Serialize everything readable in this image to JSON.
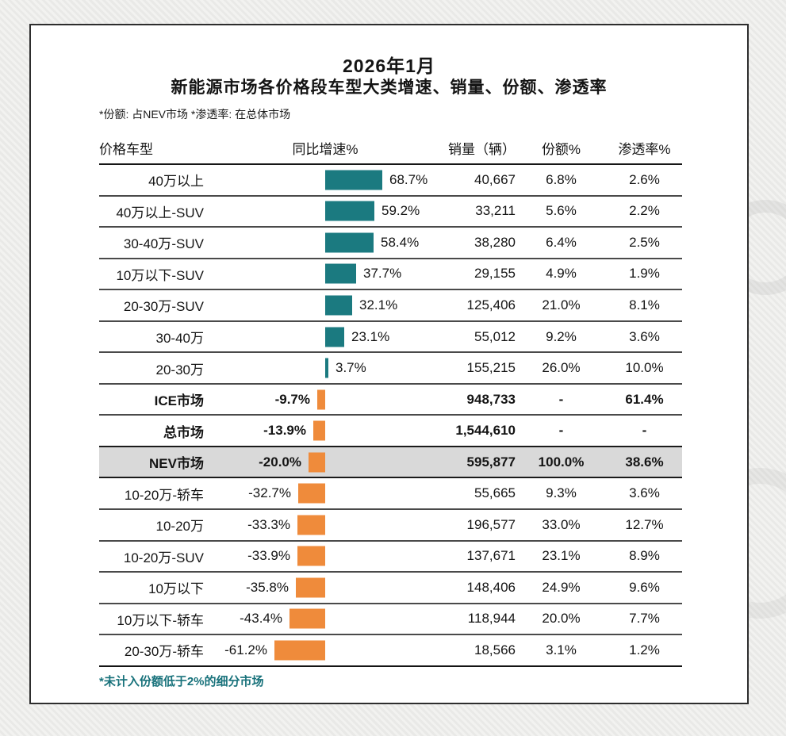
{
  "page": {
    "title_line1": "2026年1月",
    "title_line2": "新能源市场各价格段车型大类增速、销量、份额、渗透率",
    "note": "*份额: 占NEV市场  *渗透率: 在总体市场",
    "footnote": "*未计入份额低于2%的细分市场"
  },
  "colors": {
    "positive_bar": "#1b7a80",
    "negative_bar": "#ef8b3b",
    "highlight_row_bg": "#d9d9d9",
    "footnote_text": "#18727b"
  },
  "table": {
    "headers": {
      "category": "价格车型",
      "growth": "同比增速%",
      "sales": "销量（辆）",
      "share": "份额%",
      "penetration": "渗透率%"
    },
    "rows": [
      {
        "label": "40万以上",
        "growth_value": 68.7,
        "growth_label": "68.7%",
        "sales": "40,667",
        "share": "6.8%",
        "penetration": "2.6%",
        "emphasis": false,
        "highlight": false
      },
      {
        "label": "40万以上-SUV",
        "growth_value": 59.2,
        "growth_label": "59.2%",
        "sales": "33,211",
        "share": "5.6%",
        "penetration": "2.2%",
        "emphasis": false,
        "highlight": false
      },
      {
        "label": "30-40万-SUV",
        "growth_value": 58.4,
        "growth_label": "58.4%",
        "sales": "38,280",
        "share": "6.4%",
        "penetration": "2.5%",
        "emphasis": false,
        "highlight": false
      },
      {
        "label": "10万以下-SUV",
        "growth_value": 37.7,
        "growth_label": "37.7%",
        "sales": "29,155",
        "share": "4.9%",
        "penetration": "1.9%",
        "emphasis": false,
        "highlight": false
      },
      {
        "label": "20-30万-SUV",
        "growth_value": 32.1,
        "growth_label": "32.1%",
        "sales": "125,406",
        "share": "21.0%",
        "penetration": "8.1%",
        "emphasis": false,
        "highlight": false
      },
      {
        "label": "30-40万",
        "growth_value": 23.1,
        "growth_label": "23.1%",
        "sales": "55,012",
        "share": "9.2%",
        "penetration": "3.6%",
        "emphasis": false,
        "highlight": false
      },
      {
        "label": "20-30万",
        "growth_value": 3.7,
        "growth_label": "3.7%",
        "sales": "155,215",
        "share": "26.0%",
        "penetration": "10.0%",
        "emphasis": false,
        "highlight": false
      },
      {
        "label": "ICE市场",
        "growth_value": -9.7,
        "growth_label": "-9.7%",
        "sales": "948,733",
        "share": "-",
        "penetration": "61.4%",
        "emphasis": true,
        "highlight": false
      },
      {
        "label": "总市场",
        "growth_value": -13.9,
        "growth_label": "-13.9%",
        "sales": "1,544,610",
        "share": "-",
        "penetration": "-",
        "emphasis": true,
        "highlight": false
      },
      {
        "label": "NEV市场",
        "growth_value": -20.0,
        "growth_label": "-20.0%",
        "sales": "595,877",
        "share": "100.0%",
        "penetration": "38.6%",
        "emphasis": true,
        "highlight": true
      },
      {
        "label": "10-20万-轿车",
        "growth_value": -32.7,
        "growth_label": "-32.7%",
        "sales": "55,665",
        "share": "9.3%",
        "penetration": "3.6%",
        "emphasis": false,
        "highlight": false
      },
      {
        "label": "10-20万",
        "growth_value": -33.3,
        "growth_label": "-33.3%",
        "sales": "196,577",
        "share": "33.0%",
        "penetration": "12.7%",
        "emphasis": false,
        "highlight": false
      },
      {
        "label": "10-20万-SUV",
        "growth_value": -33.9,
        "growth_label": "-33.9%",
        "sales": "137,671",
        "share": "23.1%",
        "penetration": "8.9%",
        "emphasis": false,
        "highlight": false
      },
      {
        "label": "10万以下",
        "growth_value": -35.8,
        "growth_label": "-35.8%",
        "sales": "148,406",
        "share": "24.9%",
        "penetration": "9.6%",
        "emphasis": false,
        "highlight": false
      },
      {
        "label": "10万以下-轿车",
        "growth_value": -43.4,
        "growth_label": "-43.4%",
        "sales": "118,944",
        "share": "20.0%",
        "penetration": "7.7%",
        "emphasis": false,
        "highlight": false
      },
      {
        "label": "20-30万-轿车",
        "growth_value": -61.2,
        "growth_label": "-61.2%",
        "sales": "18,566",
        "share": "3.1%",
        "penetration": "1.2%",
        "emphasis": false,
        "highlight": false
      }
    ]
  },
  "chart_data": {
    "type": "bar",
    "orientation": "horizontal",
    "title": "2026年1月 新能源市场各价格段车型大类增速、销量、份额、渗透率",
    "categories": [
      "40万以上",
      "40万以上-SUV",
      "30-40万-SUV",
      "10万以下-SUV",
      "20-30万-SUV",
      "30-40万",
      "20-30万",
      "ICE市场",
      "总市场",
      "NEV市场",
      "10-20万-轿车",
      "10-20万",
      "10-20万-SUV",
      "10万以下",
      "10万以下-轿车",
      "20-30万-轿车"
    ],
    "series": [
      {
        "name": "同比增速%",
        "values": [
          68.7,
          59.2,
          58.4,
          37.7,
          32.1,
          23.1,
          3.7,
          -9.7,
          -13.9,
          -20.0,
          -32.7,
          -33.3,
          -33.9,
          -35.8,
          -43.4,
          -61.2
        ]
      },
      {
        "name": "销量（辆）",
        "values": [
          40667,
          33211,
          38280,
          29155,
          125406,
          55012,
          155215,
          948733,
          1544610,
          595877,
          55665,
          196577,
          137671,
          148406,
          118944,
          18566
        ]
      },
      {
        "name": "份额%",
        "values": [
          6.8,
          5.6,
          6.4,
          4.9,
          21.0,
          9.2,
          26.0,
          null,
          null,
          100.0,
          9.3,
          33.0,
          23.1,
          24.9,
          20.0,
          3.1
        ]
      },
      {
        "name": "渗透率%",
        "values": [
          2.6,
          2.2,
          2.5,
          1.9,
          8.1,
          3.6,
          10.0,
          61.4,
          null,
          38.6,
          3.6,
          12.7,
          8.9,
          9.6,
          7.7,
          1.2
        ]
      }
    ],
    "bar_color_positive": "#1b7a80",
    "bar_color_negative": "#ef8b3b",
    "value_labels": true,
    "axis_zero_centered": true,
    "grid": false,
    "legend_position": "none",
    "notes": [
      "*份额: 占NEV市场  *渗透率: 在总体市场",
      "*未计入份额低于2%的细分市场"
    ]
  }
}
